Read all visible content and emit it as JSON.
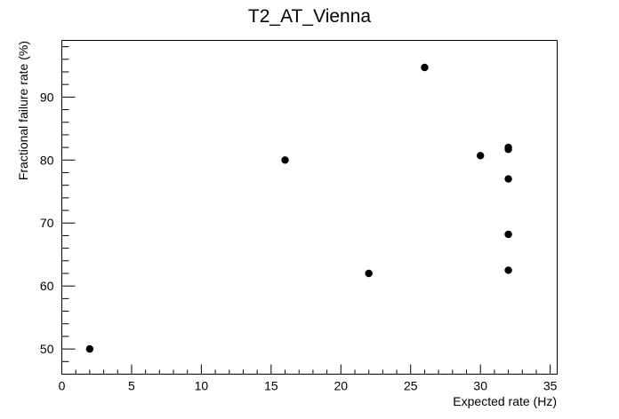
{
  "chart_data": {
    "type": "scatter",
    "title": "T2_AT_Vienna",
    "xlabel": "Expected rate (Hz)",
    "ylabel": "Fractional failure rate (%)",
    "xlim": [
      0,
      35.5
    ],
    "ylim": [
      46,
      99
    ],
    "x_ticks": [
      0,
      5,
      10,
      15,
      20,
      25,
      30,
      35
    ],
    "y_ticks": [
      50,
      60,
      70,
      80,
      90
    ],
    "grid": false,
    "legend": "none",
    "marker_color": "#000000",
    "points": [
      {
        "x": 2,
        "y": 50
      },
      {
        "x": 16,
        "y": 80
      },
      {
        "x": 22,
        "y": 62
      },
      {
        "x": 26,
        "y": 94.7
      },
      {
        "x": 30,
        "y": 80.7
      },
      {
        "x": 32,
        "y": 82
      },
      {
        "x": 32,
        "y": 81.7
      },
      {
        "x": 32,
        "y": 77
      },
      {
        "x": 32,
        "y": 68.2
      },
      {
        "x": 32,
        "y": 62.5
      }
    ]
  }
}
